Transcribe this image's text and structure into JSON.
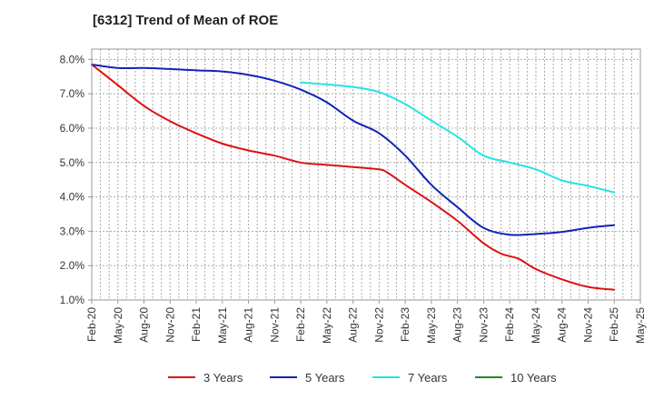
{
  "chart_data": {
    "type": "line",
    "title": "[6312]  Trend of Mean of ROE",
    "xlabel": "",
    "ylabel": "",
    "x_ticks": [
      "Feb-20",
      "May-20",
      "Aug-20",
      "Nov-20",
      "Feb-21",
      "May-21",
      "Aug-21",
      "Nov-21",
      "Feb-22",
      "May-22",
      "Aug-22",
      "Nov-22",
      "Feb-23",
      "May-23",
      "Aug-23",
      "Nov-23",
      "Feb-24",
      "May-24",
      "Aug-24",
      "Nov-24",
      "Feb-25",
      "May-25"
    ],
    "y_ticks": [
      "1.0%",
      "2.0%",
      "3.0%",
      "4.0%",
      "5.0%",
      "6.0%",
      "7.0%",
      "8.0%"
    ],
    "ylim": [
      1.0,
      8.3
    ],
    "y_unit": "%",
    "grid": true,
    "legend_position": "bottom",
    "series": [
      {
        "name": "3 Years",
        "color": "#dd1111",
        "x": [
          "Feb-20",
          "May-20",
          "Aug-20",
          "Nov-20",
          "Feb-21",
          "May-21",
          "Aug-21",
          "Nov-21",
          "Feb-22",
          "May-22",
          "Aug-22",
          "Nov-22",
          "Dec-22",
          "Feb-23",
          "May-23",
          "Aug-23",
          "Nov-23",
          "Jan-24",
          "Mar-24",
          "May-24",
          "Aug-24",
          "Nov-24",
          "Feb-25"
        ],
        "values": [
          7.85,
          7.25,
          6.65,
          6.2,
          5.85,
          5.55,
          5.35,
          5.2,
          5.0,
          4.93,
          4.87,
          4.8,
          4.7,
          4.35,
          3.85,
          3.3,
          2.65,
          2.35,
          2.2,
          1.9,
          1.6,
          1.38,
          1.3
        ]
      },
      {
        "name": "5 Years",
        "color": "#1122bb",
        "x": [
          "Feb-20",
          "May-20",
          "Aug-20",
          "Nov-20",
          "Feb-21",
          "May-21",
          "Aug-21",
          "Nov-21",
          "Feb-22",
          "May-22",
          "Aug-22",
          "Nov-22",
          "Feb-23",
          "May-23",
          "Aug-23",
          "Nov-23",
          "Feb-24",
          "May-24",
          "Aug-24",
          "Nov-24",
          "Feb-25"
        ],
        "values": [
          7.85,
          7.75,
          7.75,
          7.72,
          7.68,
          7.65,
          7.55,
          7.38,
          7.12,
          6.75,
          6.22,
          5.85,
          5.2,
          4.35,
          3.7,
          3.1,
          2.9,
          2.92,
          2.98,
          3.1,
          3.18
        ]
      },
      {
        "name": "7 Years",
        "color": "#22e5e5",
        "x": [
          "Feb-22",
          "May-22",
          "Aug-22",
          "Nov-22",
          "Feb-23",
          "May-23",
          "Aug-23",
          "Nov-23",
          "Feb-24",
          "May-24",
          "Aug-24",
          "Nov-24",
          "Feb-25"
        ],
        "values": [
          7.33,
          7.27,
          7.2,
          7.05,
          6.7,
          6.22,
          5.75,
          5.2,
          5.0,
          4.8,
          4.48,
          4.32,
          4.13
        ]
      },
      {
        "name": "10 Years",
        "color": "#22882a",
        "x": [],
        "values": []
      }
    ]
  }
}
